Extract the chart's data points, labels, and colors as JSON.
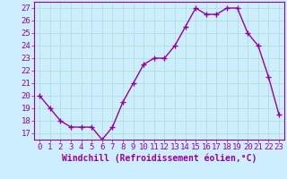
{
  "x": [
    0,
    1,
    2,
    3,
    4,
    5,
    6,
    7,
    8,
    9,
    10,
    11,
    12,
    13,
    14,
    15,
    16,
    17,
    18,
    19,
    20,
    21,
    22,
    23
  ],
  "y": [
    20,
    19,
    18,
    17.5,
    17.5,
    17.5,
    16.5,
    17.5,
    19.5,
    21,
    22.5,
    23,
    23,
    24,
    25.5,
    27,
    26.5,
    26.5,
    27,
    27,
    25,
    24,
    21.5,
    18.5
  ],
  "line_color": "#990099",
  "marker": "+",
  "marker_size": 4,
  "bg_color": "#cceeff",
  "grid_color": "#aaddcc",
  "xlabel": "Windchill (Refroidissement éolien,°C)",
  "ylabel_ticks": [
    17,
    18,
    19,
    20,
    21,
    22,
    23,
    24,
    25,
    26,
    27
  ],
  "xlim": [
    -0.5,
    23.5
  ],
  "ylim": [
    16.5,
    27.5
  ],
  "xlabel_fontsize": 7,
  "tick_fontsize": 6.5,
  "line_width": 1.0
}
